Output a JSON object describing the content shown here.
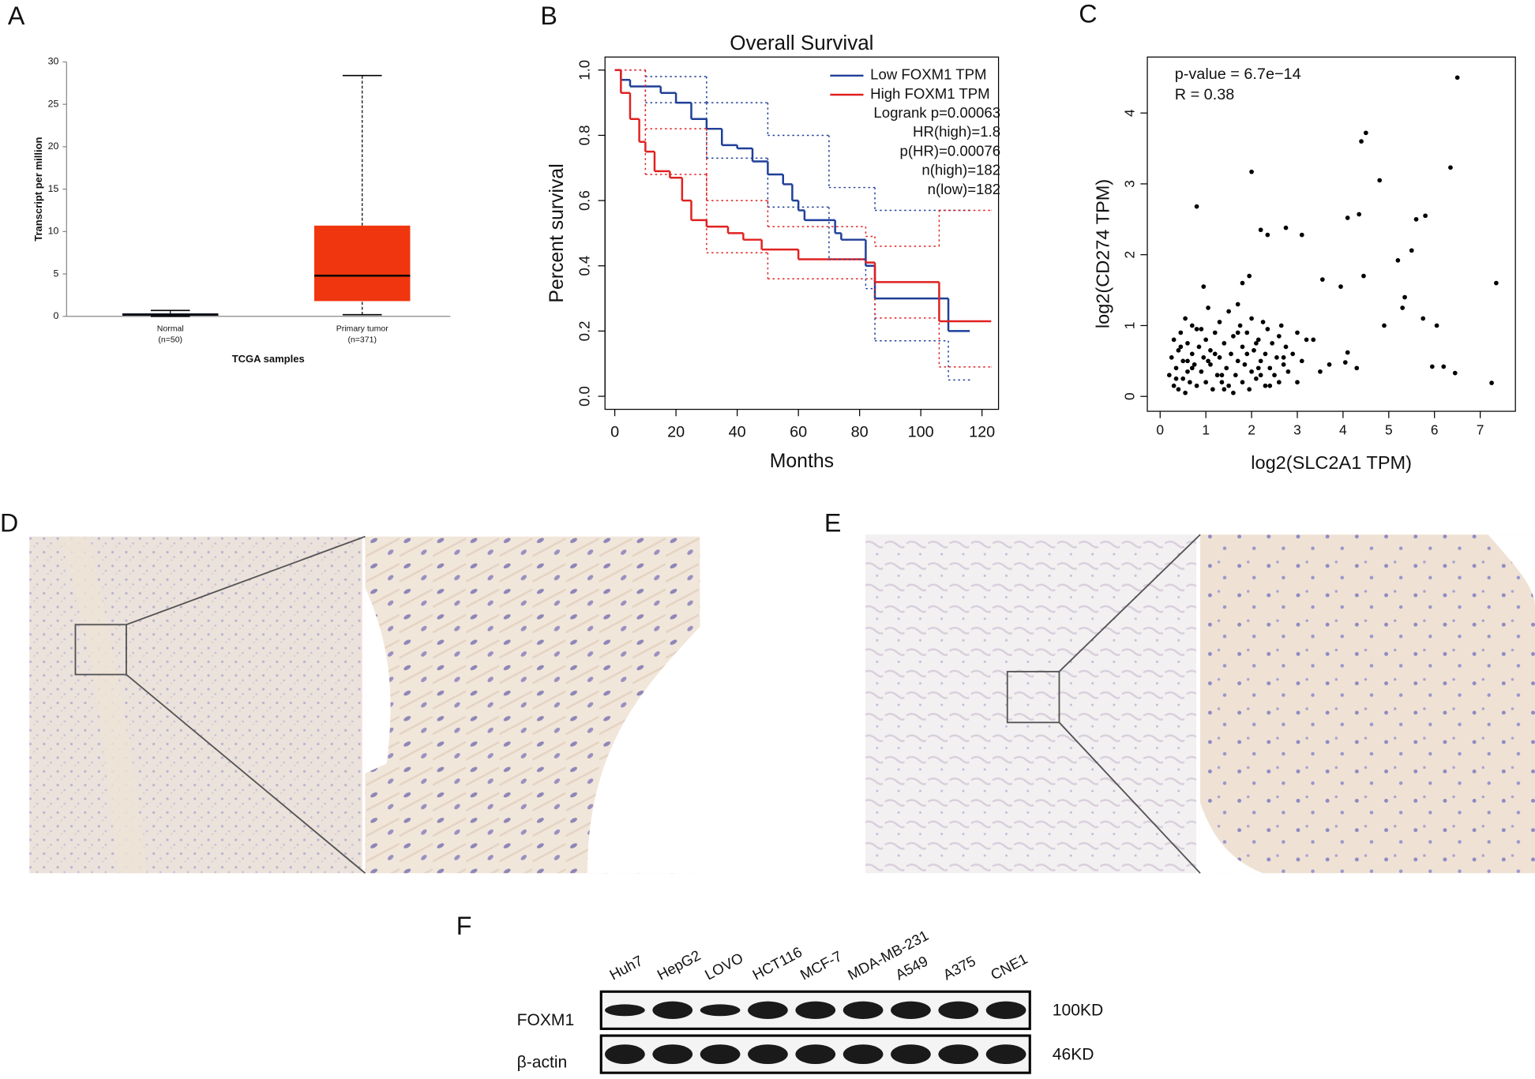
{
  "labels": [
    "A",
    "B",
    "C",
    "D",
    "E",
    "F"
  ],
  "chart_data": [
    {
      "type": "box",
      "ylabel": "Transcript per million",
      "xlabel": "TCGA samples",
      "categories": [
        "Normal",
        "Primary tumor"
      ],
      "category_notes": [
        "(n=50)",
        "(n=371)"
      ],
      "boxes": [
        {
          "min": 0,
          "q1": 0.1,
          "median": 0.2,
          "q3": 0.35,
          "max": 0.7,
          "color": "#1b2a7a"
        },
        {
          "min": 0.2,
          "q1": 1.8,
          "median": 4.8,
          "q3": 10.7,
          "max": 28.4,
          "color": "#f0360e"
        }
      ],
      "ylim": [
        0,
        30
      ],
      "yticks": [
        0,
        5,
        10,
        15,
        20,
        25,
        30
      ]
    },
    {
      "type": "step",
      "title": "Overall Survival",
      "xlabel": "Months",
      "ylabel": "Percent survival",
      "series": [
        {
          "name": "Low FOXM1 TPM",
          "color": "#1f3f99",
          "x": [
            0,
            2,
            5,
            15,
            20,
            25,
            30,
            35,
            40,
            45,
            50,
            55,
            58,
            60,
            62,
            72,
            74,
            82,
            85,
            109,
            116
          ],
          "values": [
            1,
            0.97,
            0.95,
            0.93,
            0.9,
            0.85,
            0.82,
            0.77,
            0.76,
            0.72,
            0.68,
            0.65,
            0.6,
            0.57,
            0.54,
            0.5,
            0.48,
            0.4,
            0.3,
            0.2,
            0.2
          ]
        },
        {
          "name": "High FOXM1 TPM",
          "color": "#e02020",
          "x": [
            0,
            2,
            5,
            8,
            10,
            13,
            18,
            22,
            25,
            30,
            37,
            42,
            48,
            60,
            82,
            85,
            106,
            123
          ],
          "values": [
            1,
            0.93,
            0.85,
            0.78,
            0.75,
            0.69,
            0.67,
            0.6,
            0.54,
            0.52,
            0.5,
            0.48,
            0.45,
            0.42,
            0.41,
            0.35,
            0.23,
            0.23
          ]
        },
        {
          "color": "#1f3f99",
          "dashed": true,
          "x": [
            0,
            10,
            30,
            50,
            70,
            85,
            116
          ],
          "values": [
            1,
            0.98,
            0.9,
            0.8,
            0.64,
            0.57,
            0.57
          ]
        },
        {
          "color": "#1f3f99",
          "dashed": true,
          "x": [
            0,
            10,
            30,
            50,
            70,
            82,
            85,
            109,
            116
          ],
          "values": [
            1,
            0.9,
            0.73,
            0.58,
            0.42,
            0.33,
            0.17,
            0.05,
            0.05
          ]
        },
        {
          "color": "#e02020",
          "dashed": true,
          "x": [
            0,
            10,
            30,
            50,
            82,
            85,
            106,
            123
          ],
          "values": [
            1,
            0.82,
            0.6,
            0.52,
            0.49,
            0.46,
            0.57,
            0.57
          ]
        },
        {
          "color": "#e02020",
          "dashed": true,
          "x": [
            0,
            10,
            30,
            50,
            85,
            106,
            123
          ],
          "values": [
            1,
            0.68,
            0.44,
            0.36,
            0.24,
            0.09,
            0.09
          ]
        }
      ],
      "annotations": [
        "Logrank p=0.00063",
        "HR(high)=1.8",
        "p(HR)=0.00076",
        "n(high)=182",
        "n(low)=182"
      ],
      "xlim": [
        -3.2,
        125.4
      ],
      "ylim": [
        -0.04,
        1.04
      ],
      "xticks": [
        0,
        20,
        40,
        60,
        80,
        100,
        120
      ],
      "yticks": [
        {
          "value": 0,
          "label": "0.0"
        },
        0.2,
        0.4,
        0.6,
        0.8,
        {
          "value": 1,
          "label": "1.0"
        }
      ]
    },
    {
      "type": "scatter",
      "xlabel": "log2(SLC2A1 TPM)",
      "ylabel": "log2(CD274 TPM)",
      "annotations": [
        "p-value = 6.7e−14",
        "R = 0.38"
      ],
      "color": "#000000",
      "x": [
        0.2,
        0.25,
        0.3,
        0.3,
        0.35,
        0.4,
        0.4,
        0.45,
        0.5,
        0.5,
        0.55,
        0.6,
        0.6,
        0.65,
        0.7,
        0.7,
        0.75,
        0.8,
        0.85,
        0.9,
        0.9,
        0.95,
        1.0,
        1.0,
        1.05,
        1.1,
        1.1,
        1.15,
        1.2,
        1.25,
        1.3,
        1.3,
        1.35,
        1.4,
        1.45,
        1.5,
        1.5,
        1.55,
        1.6,
        1.65,
        1.7,
        1.75,
        1.8,
        1.8,
        1.85,
        1.9,
        1.95,
        2.0,
        2.0,
        2.05,
        2.1,
        2.15,
        2.2,
        2.25,
        2.3,
        2.3,
        2.35,
        2.4,
        2.45,
        2.5,
        2.55,
        2.6,
        2.65,
        2.7,
        2.75,
        2.8,
        2.9,
        3.0,
        3.1,
        3.2,
        0.35,
        0.55,
        0.8,
        1.05,
        1.35,
        1.6,
        1.9,
        2.15,
        2.4,
        2.7,
        0.45,
        0.7,
        1.2,
        1.7,
        2.2,
        2.6,
        3.0,
        0.6,
        1.4,
        2.1,
        6.5,
        4.5,
        4.4,
        2,
        6.35,
        4.8,
        0.8,
        4.35,
        4.1,
        5.6,
        5.8,
        2.2,
        2.35,
        3.1,
        2.75,
        5.2,
        5.5,
        4.45,
        7.35,
        3.95,
        5.35,
        5.3,
        5.75,
        6.05,
        4.9,
        4.1,
        4.05,
        4.3,
        5.95,
        6.2,
        6.45,
        7.25,
        3.55,
        1.95,
        1.8,
        0.95,
        1.7,
        3.35,
        3.5,
        3.7
      ],
      "values": [
        0.3,
        0.55,
        0.15,
        0.8,
        0.4,
        0.65,
        0.1,
        0.9,
        0.25,
        0.5,
        1.1,
        0.35,
        0.75,
        0.2,
        0.6,
        1.0,
        0.45,
        0.15,
        0.7,
        0.35,
        0.95,
        0.55,
        0.2,
        0.8,
        1.25,
        0.45,
        0.65,
        0.1,
        0.9,
        0.3,
        0.55,
        1.05,
        0.2,
        0.75,
        0.4,
        0.15,
        1.2,
        0.6,
        0.85,
        0.3,
        0.5,
        1.0,
        0.2,
        0.7,
        0.45,
        0.9,
        0.1,
        0.35,
        1.1,
        0.65,
        0.25,
        0.8,
        0.5,
        1.05,
        0.15,
        0.6,
        0.95,
        0.4,
        0.75,
        0.3,
        0.55,
        0.2,
        1.0,
        0.45,
        0.7,
        0.35,
        0.6,
        0.9,
        0.5,
        0.8,
        0.25,
        0.05,
        0.95,
        0.5,
        0.3,
        0.05,
        0.6,
        0.4,
        0.15,
        0.55,
        0.7,
        0.4,
        0.6,
        0.9,
        0.3,
        0.85,
        0.2,
        0.5,
        0.1,
        0.75,
        4.5,
        3.72,
        3.6,
        3.17,
        3.23,
        3.05,
        2.68,
        2.57,
        2.52,
        2.5,
        2.55,
        2.35,
        2.28,
        2.28,
        2.38,
        1.92,
        2.06,
        1.7,
        1.6,
        1.55,
        1.4,
        1.25,
        1.1,
        1.0,
        1.0,
        0.62,
        0.48,
        0.4,
        0.42,
        0.42,
        0.33,
        0.19,
        1.65,
        1.7,
        1.6,
        1.55,
        1.3,
        0.8,
        0.35,
        0.45
      ],
      "xlim": [
        -0.28,
        7.77
      ],
      "ylim": [
        -0.21,
        4.79
      ],
      "xticks": [
        0,
        1,
        2,
        3,
        4,
        5,
        6,
        7
      ],
      "yticks": [
        0,
        1,
        2,
        3,
        4
      ]
    }
  ],
  "blot": {
    "lanes": [
      "Huh7",
      "HepG2",
      "LOVO",
      "HCT116",
      "MCF-7",
      "MDA-MB-231",
      "A549",
      "A375",
      "CNE1"
    ],
    "rows": [
      {
        "label": "FOXM1",
        "size": "100KD"
      },
      {
        "label": "β-actin",
        "size": "46KD"
      }
    ]
  }
}
